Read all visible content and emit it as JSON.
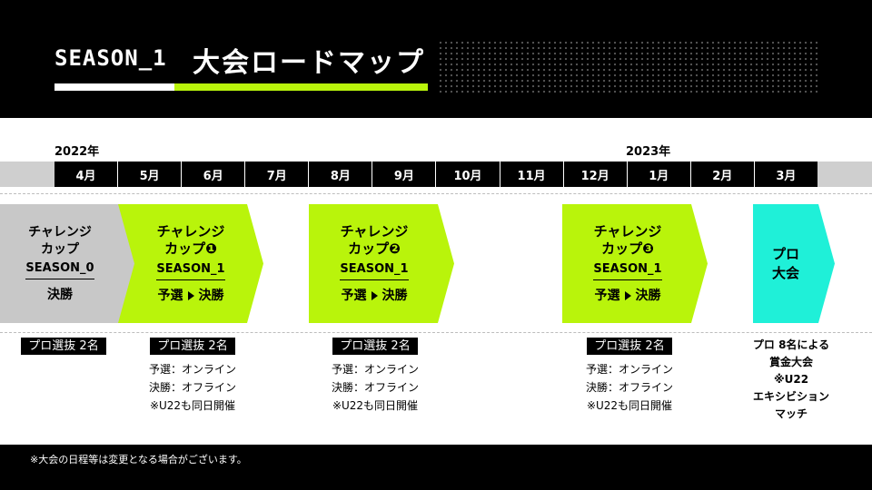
{
  "header": {
    "season": "SEASON_1",
    "title": "大会ロードマップ"
  },
  "timeline": {
    "year_start": "2022年",
    "year_end": "2023年",
    "months": [
      "4月",
      "5月",
      "6月",
      "7月",
      "8月",
      "9月",
      "10月",
      "11月",
      "12月",
      "1月",
      "2月",
      "3月"
    ]
  },
  "events": [
    {
      "name_line1": "チャレンジ",
      "name_line2": "カップ",
      "season": "SEASON_0",
      "stage": "決勝",
      "color": "#c8c8c8"
    },
    {
      "name_line1": "チャレンジ",
      "name_line2": "カップ❶",
      "season": "SEASON_1",
      "stage_a": "予選",
      "stage_b": "決勝",
      "color": "#b9f40b"
    },
    {
      "name_line1": "チャレンジ",
      "name_line2": "カップ❷",
      "season": "SEASON_1",
      "stage_a": "予選",
      "stage_b": "決勝",
      "color": "#b9f40b"
    },
    {
      "name_line1": "チャレンジ",
      "name_line2": "カップ❸",
      "season": "SEASON_1",
      "stage_a": "予選",
      "stage_b": "決勝",
      "color": "#b9f40b"
    },
    {
      "name_line1": "プロ",
      "name_line2": "大会",
      "color": "#1ff0d8"
    }
  ],
  "details": [
    {
      "badge": "プロ選抜 2名"
    },
    {
      "badge": "プロ選抜 2名",
      "line1": "予選：オンライン",
      "line2": "決勝：オフライン",
      "line3": "※U22も同日開催"
    },
    {
      "badge": "プロ選抜 2名",
      "line1": "予選：オンライン",
      "line2": "決勝：オフライン",
      "line3": "※U22も同日開催"
    },
    {
      "badge": "プロ選抜 2名",
      "line1": "予選：オンライン",
      "line2": "決勝：オフライン",
      "line3": "※U22も同日開催"
    },
    {
      "line1": "プロ 8名による",
      "line2": "賞金大会",
      "line3": "※U22",
      "line4": "エキシビション",
      "line5": "マッチ"
    }
  ],
  "footer": {
    "note": "※大会の日程等は変更となる場合がございます。"
  },
  "colors": {
    "accent_green": "#b9f40b",
    "accent_cyan": "#1ff0d8",
    "gray": "#c8c8c8",
    "black": "#000000"
  }
}
